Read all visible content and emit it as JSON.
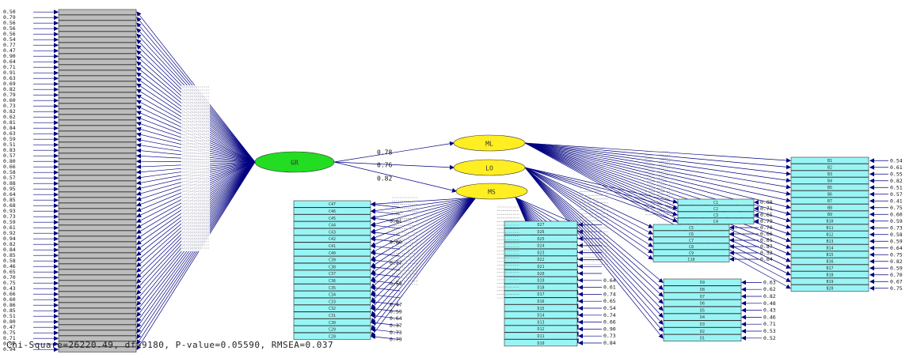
{
  "diagram": {
    "fit_statistics": "Chi-Square=26220.49, df=9180, P-value=0.05590, RMSEA=0.037",
    "latent_factors": {
      "general": {
        "label": "GR",
        "color": "#22dd22"
      },
      "first_order": [
        {
          "label": "ML",
          "color": "#ffee22",
          "path_coefficient": "0.78"
        },
        {
          "label": "LO",
          "color": "#ffee22",
          "path_coefficient": "0.76"
        },
        {
          "label": "MS",
          "color": "#ffee22",
          "path_coefficient": "0.82"
        }
      ]
    },
    "colors": {
      "arrow": "#000080",
      "gr_indicator_box": "#bdbdbd",
      "group_indicator_box": "#99f5f5",
      "box_border": "#333333"
    },
    "gr_indicators": {
      "error_variances": [
        "0.50",
        "0.79",
        "0.56",
        "0.56",
        "0.56",
        "0.54",
        "0.77",
        "0.47",
        "0.90",
        "0.64",
        "0.71",
        "0.91",
        "0.63",
        "0.69",
        "0.82",
        "0.79",
        "0.60",
        "0.73",
        "0.82",
        "0.62",
        "0.81",
        "0.84",
        "0.63",
        "0.59",
        "0.51",
        "0.83",
        "0.57",
        "0.80",
        "0.66",
        "0.58",
        "0.57",
        "0.88",
        "0.95",
        "0.64",
        "0.85",
        "0.68",
        "0.93",
        "0.73",
        "0.59",
        "0.61",
        "0.92",
        "0.94",
        "0.82",
        "0.84",
        "0.85",
        "0.58",
        "0.46",
        "0.65",
        "0.70",
        "0.75",
        "0.43",
        "0.66",
        "0.60",
        "0.86",
        "0.85",
        "0.51",
        "0.80",
        "0.47",
        "0.75",
        "0.71",
        "0.97",
        "0.94"
      ]
    },
    "ml_indicators": {
      "labels": [
        "B1",
        "B2",
        "B3",
        "B4",
        "B5",
        "B6",
        "B7",
        "B8",
        "B9",
        "B10",
        "B11",
        "B12",
        "B13",
        "B14",
        "B15",
        "B16",
        "B17",
        "B18",
        "B19",
        "B20"
      ],
      "error_variances": [
        "0.54",
        "0.61",
        "0.55",
        "0.82",
        "0.51",
        "0.57",
        "0.41",
        "0.75",
        "0.60",
        "0.59",
        "0.73",
        "0.58",
        "0.59",
        "0.64",
        "0.75",
        "0.82",
        "0.59",
        "0.70",
        "0.67",
        "0.75"
      ]
    },
    "lo_indicators": {
      "upper_labels": [
        "C1",
        "C2",
        "C3",
        "C4",
        "C5",
        "C6",
        "C7",
        "C8",
        "C9",
        "C10"
      ],
      "upper_error_variances": [
        "0.88",
        "0.71",
        "0.65",
        "0.79",
        "0.70",
        "0.66",
        "0.61",
        "0.87",
        "0.52",
        "0.64"
      ],
      "lower_labels": [
        "D9",
        "D8",
        "D7",
        "D6",
        "D5",
        "D4",
        "D3",
        "D2",
        "D1"
      ],
      "lower_error_variances": [
        "0.63",
        "0.62",
        "0.82",
        "0.48",
        "0.43",
        "0.46",
        "0.71",
        "0.53",
        "0.52"
      ]
    },
    "ms_indicators": {
      "left_labels": [
        "C47",
        "C46",
        "C45",
        "C44",
        "C43",
        "C42",
        "C41",
        "C40",
        "C39",
        "C38",
        "C37",
        "C36",
        "C35",
        "C34",
        "C33",
        "C32",
        "C31",
        "C30",
        "C29",
        "C28"
      ],
      "left_error_variances": [
        "0.33",
        "0.68",
        "0.61",
        "0.44",
        "0.58",
        "0.80",
        "0.67",
        "0.59",
        "0.77",
        "0.92",
        "0.76",
        "0.59",
        "0.47",
        "0.74",
        "0.47",
        "0.59",
        "0.64",
        "0.37",
        "0.73",
        "0.79"
      ],
      "right_labels": [
        "D27",
        "D26",
        "D25",
        "D24",
        "D23",
        "D22",
        "D21",
        "D20",
        "D19",
        "D18",
        "D17",
        "D16",
        "D15",
        "D14",
        "D13",
        "D12",
        "D11",
        "D10"
      ],
      "right_error_variances": [
        "0.57",
        "0.61",
        "0.62",
        "0.64",
        "0.72",
        "0.65",
        "0.58",
        "0.54",
        "0.64",
        "0.61",
        "0.74",
        "0.65",
        "0.54",
        "0.74",
        "0.66",
        "0.90",
        "0.73",
        "0.84"
      ]
    }
  }
}
